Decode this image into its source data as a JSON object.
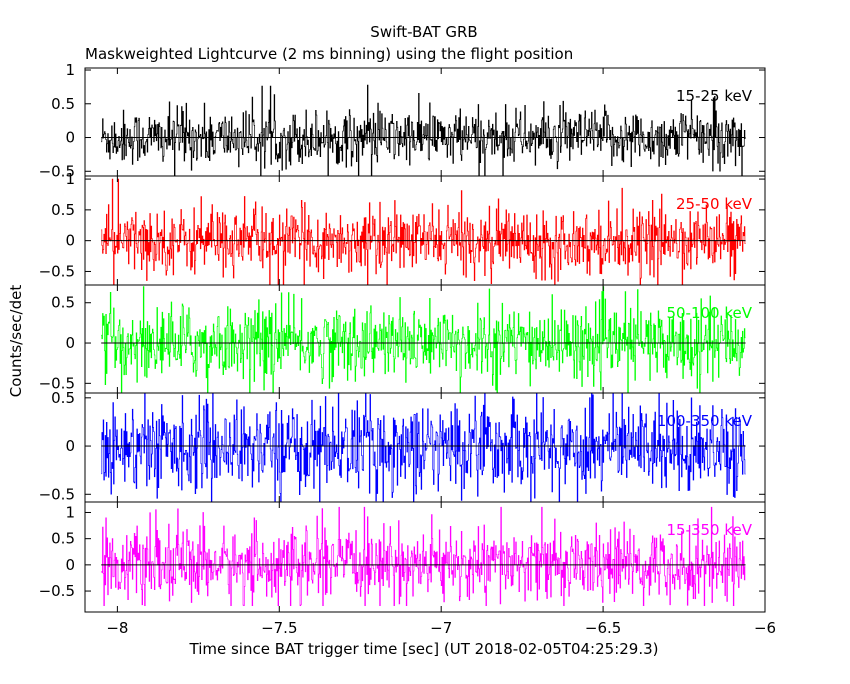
{
  "chart_data": {
    "type": "line",
    "title": "Swift-BAT GRB",
    "subtitle": "Maskweighted Lightcurve (2 ms binning) using the flight position",
    "xlabel": "Time since BAT trigger time [sec] (UT 2018-02-05T04:25:29.3)",
    "ylabel": "Counts/sec/det",
    "xlim": [
      -8.1,
      -6.0
    ],
    "x_ticks": [
      -8,
      -7.5,
      -7,
      -6.5,
      -6
    ],
    "x_tick_labels": [
      "−8",
      "−7.5",
      "−7",
      "−6.5",
      "−6"
    ],
    "data_x_range": [
      -8.05,
      -6.06
    ],
    "bin_width_sec": 0.002,
    "panels": [
      {
        "band": "15-25 keV",
        "color": "#000000",
        "ylim": [
          -0.57,
          1.03
        ],
        "y_ticks": [
          -0.5,
          0,
          0.5,
          1
        ],
        "y_tick_labels": [
          "−0.5",
          "0",
          "0.5",
          "1"
        ],
        "noise_sigma": 0.2,
        "max_level": 1.0,
        "min_level": -0.57
      },
      {
        "band": "25-50 keV",
        "color": "#ff0000",
        "ylim": [
          -0.72,
          1.05
        ],
        "y_ticks": [
          -0.5,
          0,
          0.5,
          1
        ],
        "y_tick_labels": [
          "−0.5",
          "0",
          "0.5",
          "1"
        ],
        "noise_sigma": 0.25,
        "max_level": 1.0,
        "min_level": -0.72
      },
      {
        "band": "50-100 keV",
        "color": "#00ff00",
        "ylim": [
          -0.62,
          0.72
        ],
        "y_ticks": [
          -0.5,
          0,
          0.5
        ],
        "y_tick_labels": [
          "−0.5",
          "0",
          "0.5"
        ],
        "noise_sigma": 0.22,
        "max_level": 0.7,
        "min_level": -0.62
      },
      {
        "band": "100-350 keV",
        "color": "#0000ff",
        "ylim": [
          -0.58,
          0.55
        ],
        "y_ticks": [
          -0.5,
          0,
          0.5
        ],
        "y_tick_labels": [
          "−0.5",
          "0",
          "0.5"
        ],
        "noise_sigma": 0.22,
        "max_level": 0.55,
        "min_level": -0.58
      },
      {
        "band": "15-350 keV",
        "color": "#ff00ff",
        "ylim": [
          -0.9,
          1.2
        ],
        "y_ticks": [
          -0.5,
          0,
          0.5,
          1
        ],
        "y_tick_labels": [
          "−0.5",
          "0",
          "0.5",
          "1"
        ],
        "noise_sigma": 0.33,
        "max_level": 1.1,
        "min_level": -0.78
      }
    ]
  }
}
